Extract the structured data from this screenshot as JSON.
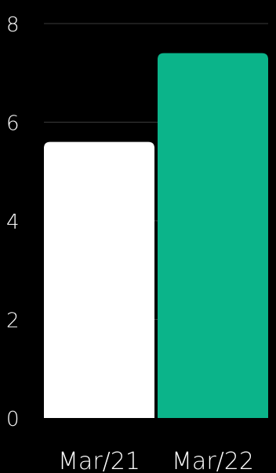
{
  "chart_data": {
    "type": "bar",
    "categories": [
      "Mar/21",
      "Mar/22"
    ],
    "series": [
      {
        "values": [
          5.6,
          7.4
        ]
      }
    ],
    "bar_colors": [
      "#ffffff",
      "#0bb48a"
    ],
    "background": "#000000",
    "gridline_color": "#3a3a3a",
    "y_ticks": [
      "0",
      "2",
      "4",
      "6",
      "8"
    ],
    "ylim": [
      0,
      8
    ],
    "grid": true,
    "legend": "none",
    "title": "",
    "xlabel": "",
    "ylabel": ""
  }
}
